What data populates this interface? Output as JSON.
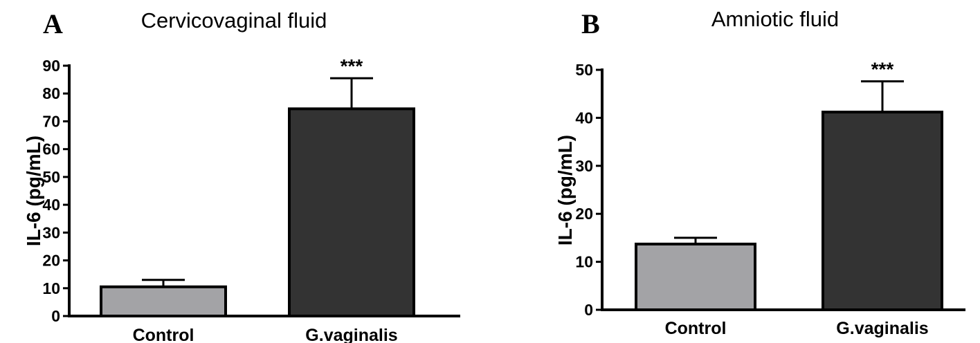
{
  "chart_data": [
    {
      "panel": "A",
      "type": "bar",
      "title": "Cervicovaginal fluid",
      "xlabel": "",
      "ylabel": "IL-6 (pg/mL)",
      "ylim": [
        0,
        90
      ],
      "yticks": [
        0,
        10,
        20,
        30,
        40,
        50,
        60,
        70,
        80,
        90
      ],
      "categories": [
        "Control",
        "G.vaginalis"
      ],
      "values": [
        10.5,
        74.5
      ],
      "errors": [
        2.5,
        11
      ],
      "significance": [
        "",
        "***"
      ],
      "bar_colors": [
        "#a3a3a6",
        "#333333"
      ],
      "grid": false
    },
    {
      "panel": "B",
      "type": "bar",
      "title": "Amniotic fluid",
      "xlabel": "",
      "ylabel": "IL-6 (pg/mL)",
      "ylim": [
        0,
        50
      ],
      "yticks": [
        0,
        10,
        20,
        30,
        40,
        50
      ],
      "categories": [
        "Control",
        "G.vaginalis"
      ],
      "values": [
        13.7,
        41.2
      ],
      "errors": [
        1.3,
        6.4
      ],
      "significance": [
        "",
        "***"
      ],
      "bar_colors": [
        "#a3a3a6",
        "#333333"
      ],
      "grid": false
    }
  ]
}
